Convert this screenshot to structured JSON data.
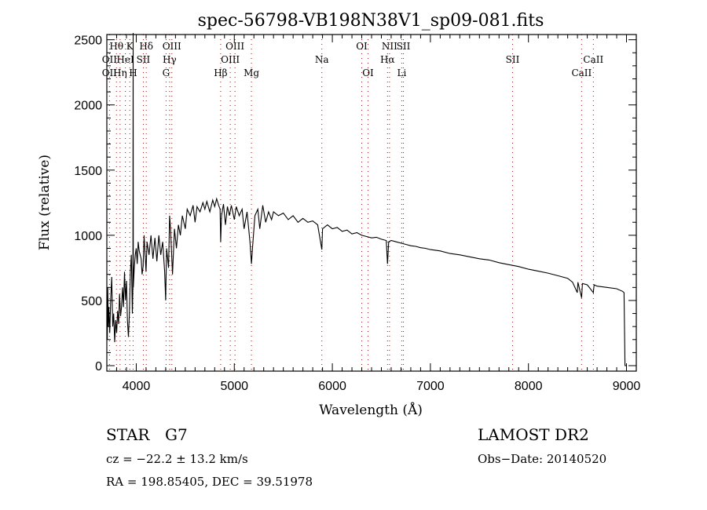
{
  "chart_data": {
    "type": "line",
    "title": "spec-56798-VB198N38V1_sp09-081.fits",
    "xlabel": "Wavelength (Å)",
    "ylabel": "Flux (relative)",
    "xlim": [
      3700,
      9100
    ],
    "ylim": [
      -42,
      2540
    ],
    "xticks": [
      4000,
      5000,
      6000,
      7000,
      8000,
      9000
    ],
    "yticks": [
      0,
      500,
      1000,
      1500,
      2000,
      2500
    ],
    "grid": false,
    "line_color": "#000000",
    "marker_color": "#8b1a1a",
    "spectrum": [
      [
        3700,
        350
      ],
      [
        3705,
        200
      ],
      [
        3710,
        600
      ],
      [
        3715,
        300
      ],
      [
        3720,
        450
      ],
      [
        3730,
        250
      ],
      [
        3740,
        520
      ],
      [
        3750,
        680
      ],
      [
        3760,
        300
      ],
      [
        3770,
        400
      ],
      [
        3780,
        180
      ],
      [
        3790,
        350
      ],
      [
        3800,
        250
      ],
      [
        3810,
        420
      ],
      [
        3820,
        320
      ],
      [
        3830,
        550
      ],
      [
        3840,
        380
      ],
      [
        3850,
        450
      ],
      [
        3860,
        600
      ],
      [
        3870,
        450
      ],
      [
        3880,
        720
      ],
      [
        3890,
        500
      ],
      [
        3900,
        650
      ],
      [
        3910,
        350
      ],
      [
        3920,
        220
      ],
      [
        3930,
        400
      ],
      [
        3940,
        720
      ],
      [
        3950,
        850
      ],
      [
        3960,
        400
      ],
      [
        3966,
        600
      ],
      [
        3968,
        2600
      ],
      [
        3970,
        600
      ],
      [
        3980,
        750
      ],
      [
        3990,
        850
      ],
      [
        4000,
        900
      ],
      [
        4010,
        780
      ],
      [
        4020,
        950
      ],
      [
        4030,
        880
      ],
      [
        4050,
        820
      ],
      [
        4060,
        700
      ],
      [
        4070,
        760
      ],
      [
        4080,
        1000
      ],
      [
        4100,
        720
      ],
      [
        4110,
        950
      ],
      [
        4130,
        850
      ],
      [
        4150,
        1000
      ],
      [
        4170,
        820
      ],
      [
        4190,
        980
      ],
      [
        4210,
        800
      ],
      [
        4230,
        1000
      ],
      [
        4250,
        850
      ],
      [
        4270,
        950
      ],
      [
        4290,
        720
      ],
      [
        4300,
        500
      ],
      [
        4310,
        900
      ],
      [
        4330,
        750
      ],
      [
        4340,
        1150
      ],
      [
        4350,
        1050
      ],
      [
        4370,
        700
      ],
      [
        4390,
        1050
      ],
      [
        4410,
        900
      ],
      [
        4430,
        1080
      ],
      [
        4450,
        1000
      ],
      [
        4470,
        1150
      ],
      [
        4500,
        1050
      ],
      [
        4520,
        1200
      ],
      [
        4550,
        1150
      ],
      [
        4580,
        1230
      ],
      [
        4600,
        1100
      ],
      [
        4620,
        1220
      ],
      [
        4650,
        1180
      ],
      [
        4680,
        1250
      ],
      [
        4700,
        1200
      ],
      [
        4720,
        1260
      ],
      [
        4750,
        1180
      ],
      [
        4780,
        1270
      ],
      [
        4800,
        1220
      ],
      [
        4820,
        1280
      ],
      [
        4840,
        1230
      ],
      [
        4855,
        1200
      ],
      [
        4861,
        950
      ],
      [
        4870,
        1150
      ],
      [
        4890,
        1240
      ],
      [
        4910,
        1080
      ],
      [
        4930,
        1220
      ],
      [
        4950,
        1150
      ],
      [
        4970,
        1230
      ],
      [
        5000,
        1120
      ],
      [
        5020,
        1220
      ],
      [
        5050,
        1150
      ],
      [
        5080,
        1200
      ],
      [
        5100,
        1050
      ],
      [
        5130,
        1180
      ],
      [
        5160,
        950
      ],
      [
        5175,
        780
      ],
      [
        5185,
        900
      ],
      [
        5210,
        1150
      ],
      [
        5240,
        1200
      ],
      [
        5260,
        1050
      ],
      [
        5290,
        1230
      ],
      [
        5320,
        1100
      ],
      [
        5350,
        1180
      ],
      [
        5380,
        1120
      ],
      [
        5400,
        1180
      ],
      [
        5450,
        1150
      ],
      [
        5500,
        1170
      ],
      [
        5550,
        1120
      ],
      [
        5600,
        1150
      ],
      [
        5650,
        1100
      ],
      [
        5700,
        1130
      ],
      [
        5750,
        1100
      ],
      [
        5800,
        1110
      ],
      [
        5850,
        1080
      ],
      [
        5893,
        890
      ],
      [
        5900,
        1050
      ],
      [
        5950,
        1080
      ],
      [
        6000,
        1050
      ],
      [
        6050,
        1060
      ],
      [
        6100,
        1030
      ],
      [
        6150,
        1040
      ],
      [
        6200,
        1010
      ],
      [
        6250,
        1020
      ],
      [
        6300,
        1000
      ],
      [
        6350,
        990
      ],
      [
        6400,
        980
      ],
      [
        6450,
        985
      ],
      [
        6500,
        970
      ],
      [
        6550,
        960
      ],
      [
        6563,
        780
      ],
      [
        6575,
        950
      ],
      [
        6600,
        960
      ],
      [
        6650,
        950
      ],
      [
        6700,
        940
      ],
      [
        6750,
        930
      ],
      [
        6800,
        920
      ],
      [
        6850,
        915
      ],
      [
        6900,
        905
      ],
      [
        6950,
        900
      ],
      [
        7000,
        890
      ],
      [
        7100,
        880
      ],
      [
        7200,
        860
      ],
      [
        7300,
        850
      ],
      [
        7400,
        835
      ],
      [
        7500,
        820
      ],
      [
        7600,
        810
      ],
      [
        7700,
        790
      ],
      [
        7800,
        775
      ],
      [
        7900,
        760
      ],
      [
        8000,
        740
      ],
      [
        8100,
        725
      ],
      [
        8200,
        710
      ],
      [
        8300,
        690
      ],
      [
        8400,
        670
      ],
      [
        8450,
        640
      ],
      [
        8498,
        560
      ],
      [
        8505,
        640
      ],
      [
        8542,
        520
      ],
      [
        8550,
        630
      ],
      [
        8600,
        620
      ],
      [
        8662,
        560
      ],
      [
        8670,
        620
      ],
      [
        8700,
        610
      ],
      [
        8800,
        600
      ],
      [
        8900,
        590
      ],
      [
        8960,
        570
      ],
      [
        8975,
        560
      ],
      [
        8985,
        0
      ],
      [
        9000,
        0
      ]
    ],
    "line_markers": [
      {
        "label": "OII",
        "wave": 3727,
        "row": 2
      },
      {
        "label": "OII",
        "wave": 3727,
        "row": 3
      },
      {
        "label": "Hθ",
        "wave": 3798,
        "row": 1
      },
      {
        "label": "Hη",
        "wave": 3835,
        "row": 3
      },
      {
        "label": "HeI",
        "wave": 3889,
        "row": 2
      },
      {
        "label": "K",
        "wave": 3934,
        "row": 1
      },
      {
        "label": "H",
        "wave": 3968,
        "row": 3
      },
      {
        "label": "SII",
        "wave": 4072,
        "row": 2
      },
      {
        "label": "Hδ",
        "wave": 4102,
        "row": 1
      },
      {
        "label": "G",
        "wave": 4304,
        "row": 3
      },
      {
        "label": "Hγ",
        "wave": 4340,
        "row": 2
      },
      {
        "label": "OIII",
        "wave": 4363,
        "row": 1
      },
      {
        "label": "Hβ",
        "wave": 4861,
        "row": 3
      },
      {
        "label": "OIII",
        "wave": 4959,
        "row": 2
      },
      {
        "label": "OIII",
        "wave": 5007,
        "row": 1
      },
      {
        "label": "Mg",
        "wave": 5175,
        "row": 3
      },
      {
        "label": "Na",
        "wave": 5893,
        "row": 2
      },
      {
        "label": "OI",
        "wave": 6300,
        "row": 1
      },
      {
        "label": "OI",
        "wave": 6364,
        "row": 3
      },
      {
        "label": "Hα",
        "wave": 6563,
        "row": 2
      },
      {
        "label": "NII",
        "wave": 6583,
        "row": 1
      },
      {
        "label": "Li",
        "wave": 6708,
        "row": 3
      },
      {
        "label": "SII",
        "wave": 6725,
        "row": 1
      },
      {
        "label": "SII",
        "wave": 7838,
        "row": 2
      },
      {
        "label": "CaII",
        "wave": 8542,
        "row": 3
      },
      {
        "label": "CaII",
        "wave": 8662,
        "row": 2
      }
    ]
  },
  "info": {
    "object_class": "STAR",
    "subclass": "G7",
    "redshift": "cz = −22.2 ± 13.2 km/s",
    "coords": "RA = 198.85405, DEC =  39.51978",
    "survey": "LAMOST DR2",
    "obs_date": "Obs−Date: 20140520"
  }
}
